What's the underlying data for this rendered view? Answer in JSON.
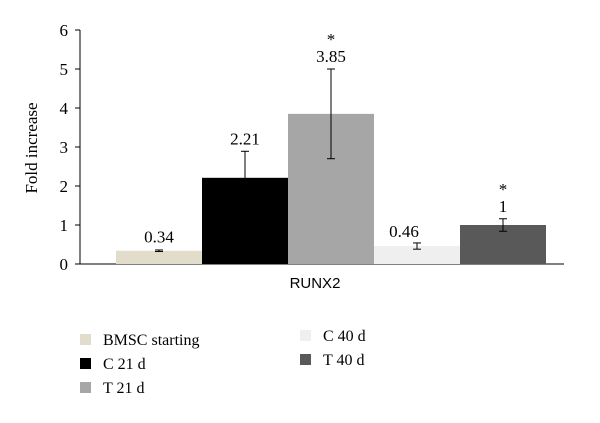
{
  "chart_data": {
    "type": "bar",
    "ylabel": "Fold increase",
    "ylim": [
      0,
      6
    ],
    "yticks": [
      "0",
      "1",
      "2",
      "3",
      "4",
      "5",
      "6"
    ],
    "categories": [
      "RUNX2"
    ],
    "grid": false,
    "legend_position": "bottom",
    "series": [
      {
        "name": "BMSC starting",
        "value": 0.34,
        "error": 0.02,
        "label": "0.34",
        "marker": "",
        "color": "#e2dccb"
      },
      {
        "name": "C 21 d",
        "value": 2.21,
        "error": 0.68,
        "label": "2.21",
        "marker": "",
        "color": "#000000"
      },
      {
        "name": "T 21 d",
        "value": 3.85,
        "error": 1.15,
        "label": "3.85",
        "marker": "*",
        "color": "#a6a6a6"
      },
      {
        "name": "C 40 d",
        "value": 0.46,
        "error": 0.08,
        "label": "0.46",
        "marker": "",
        "color": "#efefef"
      },
      {
        "name": "T 40 d",
        "value": 1.0,
        "error": 0.16,
        "label": "1",
        "marker": "*",
        "color": "#595959"
      }
    ]
  }
}
